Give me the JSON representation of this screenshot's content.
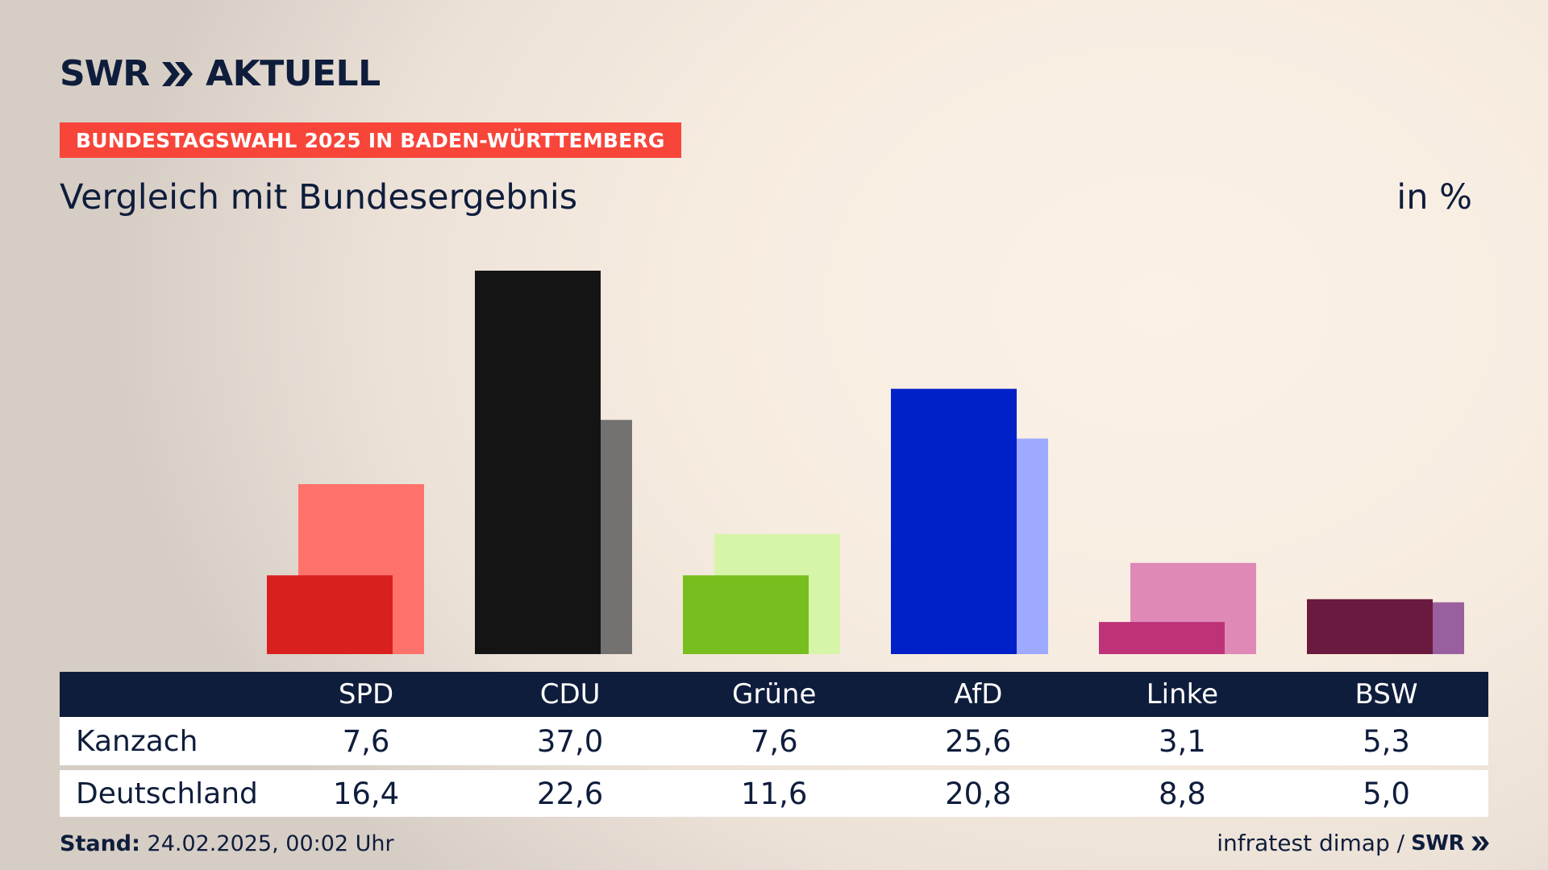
{
  "header": {
    "logo_swr": "SWR",
    "logo_aktuell": "AKTUELL",
    "banner": "BUNDESTAGSWAHL 2025 IN BADEN-WÜRTTEMBERG",
    "subtitle": "Vergleich mit Bundesergebnis",
    "unit": "in %"
  },
  "colors": {
    "navy": "#0f1d3c",
    "banner": "#f8453a"
  },
  "chart_data": {
    "type": "bar",
    "categories": [
      "SPD",
      "CDU",
      "Grüne",
      "AfD",
      "Linke",
      "BSW"
    ],
    "series": [
      {
        "name": "Kanzach",
        "values": [
          7.6,
          37.0,
          7.6,
          25.6,
          3.1,
          5.3
        ],
        "colors": [
          "#d8201e",
          "#141414",
          "#78be1e",
          "#0021c8",
          "#be3278",
          "#6b1a3f"
        ]
      },
      {
        "name": "Deutschland",
        "values": [
          16.4,
          22.6,
          11.6,
          20.8,
          8.8,
          5.0
        ],
        "colors": [
          "#ff726b",
          "#747270",
          "#d6f5a9",
          "#9eaaff",
          "#df89b6",
          "#9a5f9e"
        ]
      }
    ],
    "ylim": [
      0,
      37.0
    ],
    "legend": "table-below",
    "grid": false
  },
  "table": {
    "headers": [
      "SPD",
      "CDU",
      "Grüne",
      "AfD",
      "Linke",
      "BSW"
    ],
    "rows": [
      {
        "label": "Kanzach",
        "values": [
          "7,6",
          "37,0",
          "7,6",
          "25,6",
          "3,1",
          "5,3"
        ]
      },
      {
        "label": "Deutschland",
        "values": [
          "16,4",
          "22,6",
          "11,6",
          "20,8",
          "8,8",
          "5,0"
        ]
      }
    ]
  },
  "footer": {
    "stand_label": "Stand:",
    "stand_value": "24.02.2025, 00:02 Uhr",
    "source": "infratest dimap /",
    "source_logo": "SWR"
  }
}
